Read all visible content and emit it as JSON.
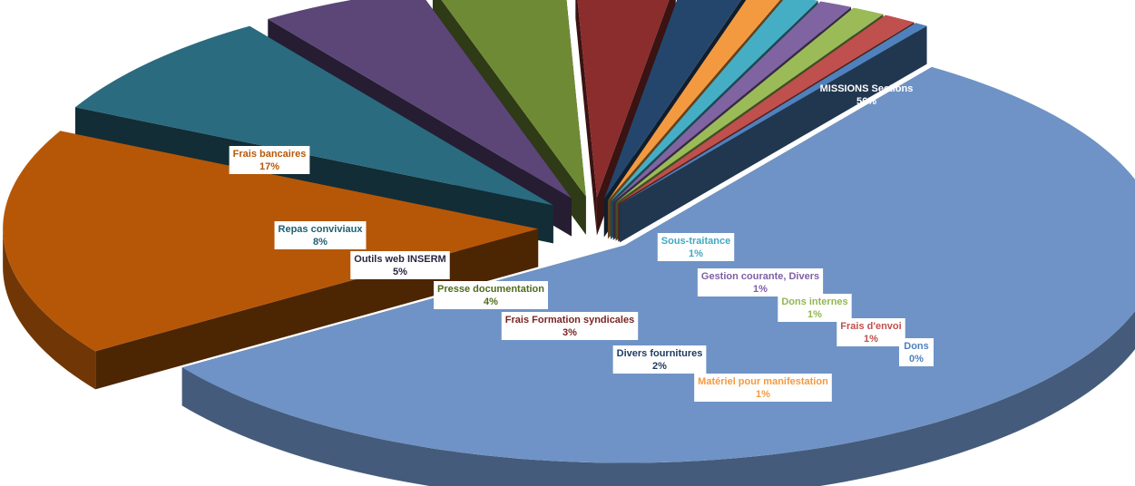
{
  "chart_data": {
    "type": "pie",
    "style": "3d-exploded",
    "title": "",
    "categories": [
      "MISSIONS Sections",
      "Frais bancaires",
      "Repas conviviaux",
      "Outils web INSERM",
      "Presse documentation",
      "Frais Formation syndicales",
      "Divers fournitures",
      "Matériel pour manifestation",
      "Sous-traitance",
      "Gestion courante, Divers",
      "Dons internes",
      "Frais d'envoi",
      "Dons"
    ],
    "values": [
      56,
      17,
      8,
      5,
      4,
      3,
      2,
      1,
      1,
      1,
      1,
      1,
      0
    ],
    "labels": [
      "56%",
      "17%",
      "8%",
      "5%",
      "4%",
      "3%",
      "2%",
      "1%",
      "1%",
      "1%",
      "1%",
      "1%",
      "0%"
    ],
    "colors": [
      "#6f93c6",
      "#b65708",
      "#2a6b80",
      "#5b4677",
      "#6f8a35",
      "#8a2d2c",
      "#25466c",
      "#f39a41",
      "#45aec5",
      "#8064a2",
      "#9bbb59",
      "#c0504d",
      "#4f81bd"
    ],
    "label_colors": [
      "#ffffff",
      "#b65708",
      "#1f5f72",
      "#2b2540",
      "#4f6b1c",
      "#7a2422",
      "#1f3c63",
      "#f39a41",
      "#3fa9c2",
      "#7e5fa6",
      "#93b653",
      "#c0504d",
      "#4f81bd"
    ]
  }
}
